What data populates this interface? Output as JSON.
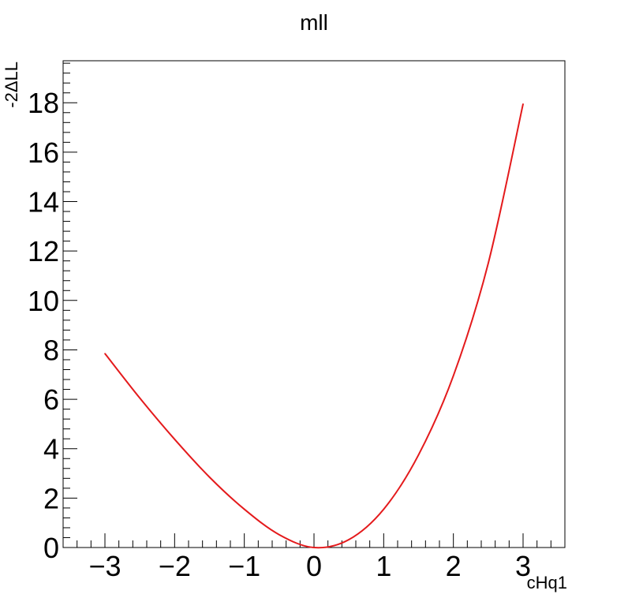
{
  "chart_data": {
    "type": "line",
    "title": "mll",
    "xlabel": "cHq1",
    "ylabel": "-2ΔLL",
    "xlim": [
      -3.6,
      3.6
    ],
    "ylim": [
      0,
      19.7
    ],
    "grid": false,
    "legend": "none",
    "x_ticks": [
      {
        "value": -3,
        "label": "−3"
      },
      {
        "value": -2,
        "label": "−2"
      },
      {
        "value": -1,
        "label": "−1"
      },
      {
        "value": 0,
        "label": "0"
      },
      {
        "value": 1,
        "label": "1"
      },
      {
        "value": 2,
        "label": "2"
      },
      {
        "value": 3,
        "label": "3"
      }
    ],
    "y_ticks": [
      {
        "value": 0,
        "label": "0"
      },
      {
        "value": 2,
        "label": "2"
      },
      {
        "value": 4,
        "label": "4"
      },
      {
        "value": 6,
        "label": "6"
      },
      {
        "value": 8,
        "label": "8"
      },
      {
        "value": 10,
        "label": "10"
      },
      {
        "value": 12,
        "label": "12"
      },
      {
        "value": 14,
        "label": "14"
      },
      {
        "value": 16,
        "label": "16"
      },
      {
        "value": 18,
        "label": "18"
      }
    ],
    "series": [
      {
        "color": "#e41a1c",
        "x": [
          -3.0,
          -2.5,
          -2.0,
          -1.5,
          -1.0,
          -0.5,
          0.0,
          0.5,
          1.0,
          1.5,
          2.0,
          2.5,
          3.0
        ],
        "y": [
          7.85,
          6.05,
          4.38,
          2.85,
          1.55,
          0.52,
          0.0,
          0.32,
          1.55,
          3.75,
          6.95,
          11.5,
          17.95
        ]
      }
    ]
  }
}
